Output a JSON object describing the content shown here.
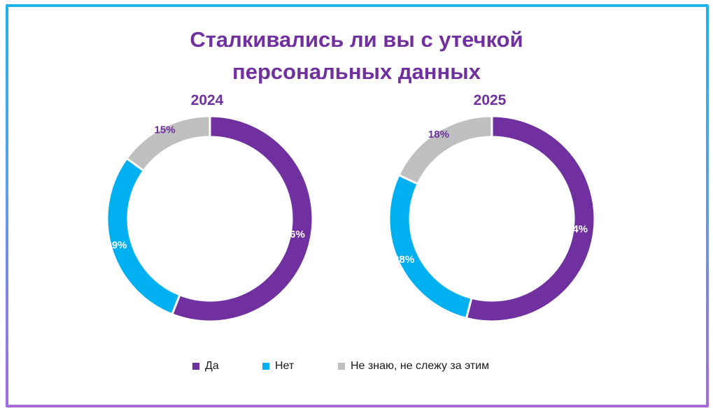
{
  "title_lines": [
    "Сталкивались ли вы с утечкой",
    "персональных данных"
  ],
  "chart_data": [
    {
      "type": "pie",
      "title": "2024",
      "categories": [
        "Да",
        "Нет",
        "Не знаю, не слежу за этим"
      ],
      "values": [
        56,
        29,
        15
      ],
      "labels": [
        "56%",
        "29%",
        "15%"
      ],
      "colors": [
        "#7030a0",
        "#00b0f0",
        "#bfbfbf"
      ],
      "label_colors": [
        "#ffffff",
        "#ffffff",
        "#7030a0"
      ]
    },
    {
      "type": "pie",
      "title": "2025",
      "categories": [
        "Да",
        "Нет",
        "Не знаю, не слежу за этим"
      ],
      "values": [
        54,
        28,
        18
      ],
      "labels": [
        "54%",
        "28%",
        "18%"
      ],
      "colors": [
        "#7030a0",
        "#00b0f0",
        "#bfbfbf"
      ],
      "label_colors": [
        "#ffffff",
        "#ffffff",
        "#7030a0"
      ]
    }
  ],
  "legend": {
    "placement": "bottom",
    "items": [
      {
        "label": "Да",
        "color": "#7030a0"
      },
      {
        "label": "Нет",
        "color": "#00b0f0"
      },
      {
        "label": "Не знаю, не слежу за этим",
        "color": "#bfbfbf"
      }
    ]
  }
}
